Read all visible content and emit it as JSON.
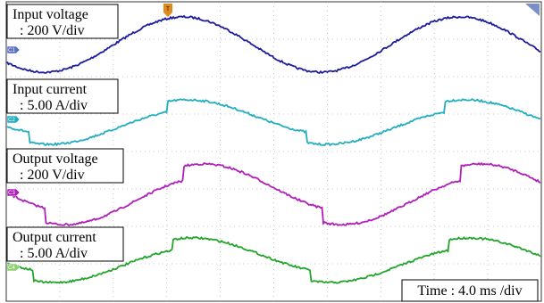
{
  "channels": [
    {
      "name": "Input voltage",
      "scale": ": 200 V/div",
      "marker": "C1"
    },
    {
      "name": "Input current",
      "scale": ": 5.00 A/div",
      "marker": "C2"
    },
    {
      "name": "Output voltage",
      "scale": ": 200 V/div",
      "marker": "C3"
    },
    {
      "name": "Output current",
      "scale": ": 5.00 A/div",
      "marker": "C4"
    }
  ],
  "trigger_marker": "T",
  "time_scale": "Time : 4.0 ms /div"
}
